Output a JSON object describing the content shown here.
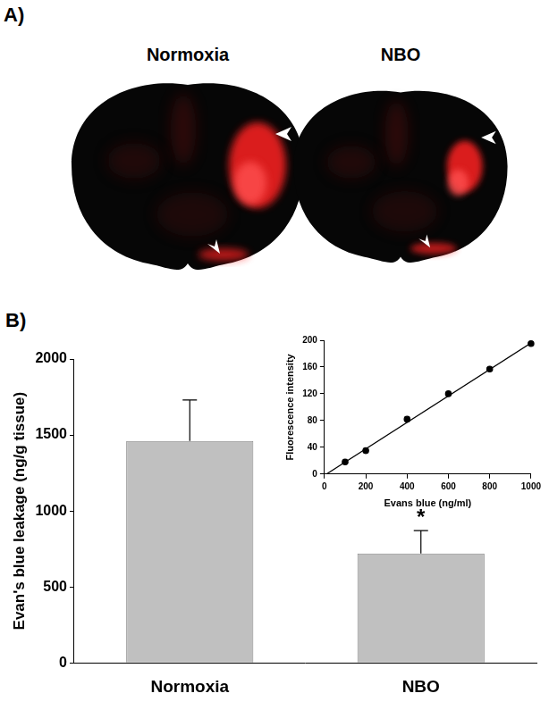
{
  "panel_a": {
    "label": "A)",
    "images": [
      "Normoxia",
      "NBO"
    ]
  },
  "panel_b": {
    "label": "B)"
  },
  "chart_data": [
    {
      "type": "bar",
      "y_label": "Evan's blue leakage (ng/g tissue)",
      "categories": [
        "Normoxia",
        "NBO"
      ],
      "values": [
        1460,
        720
      ],
      "errors": [
        270,
        150
      ],
      "color": "#c0c0c0",
      "ylim": [
        0,
        2000
      ],
      "yticks": [
        0,
        500,
        1000,
        1500,
        2000
      ],
      "grid": false,
      "annotations": [
        {
          "text": "*",
          "category": "NBO"
        }
      ]
    },
    {
      "type": "scatter",
      "x_label": "Evans blue (ng/ml)",
      "y_label": "Fluorescence intensity",
      "xlim": [
        0,
        1000
      ],
      "xticks": [
        0,
        200,
        400,
        600,
        800,
        1000
      ],
      "ylim": [
        0,
        200
      ],
      "yticks": [
        0,
        40,
        80,
        120,
        160,
        200
      ],
      "grid": false,
      "series": [
        {
          "x": [
            100,
            200,
            400,
            600,
            800,
            1000
          ],
          "values": [
            18,
            35,
            82,
            120,
            157,
            195
          ],
          "errors": [
            2,
            3,
            3,
            2,
            2,
            2
          ],
          "color": "#000000",
          "marker": "circle",
          "line_style": "none"
        },
        {
          "x": [
            10,
            1000
          ],
          "values": [
            0,
            196
          ],
          "color": "#000000",
          "marker": "none",
          "line_style": "solid"
        }
      ]
    }
  ]
}
